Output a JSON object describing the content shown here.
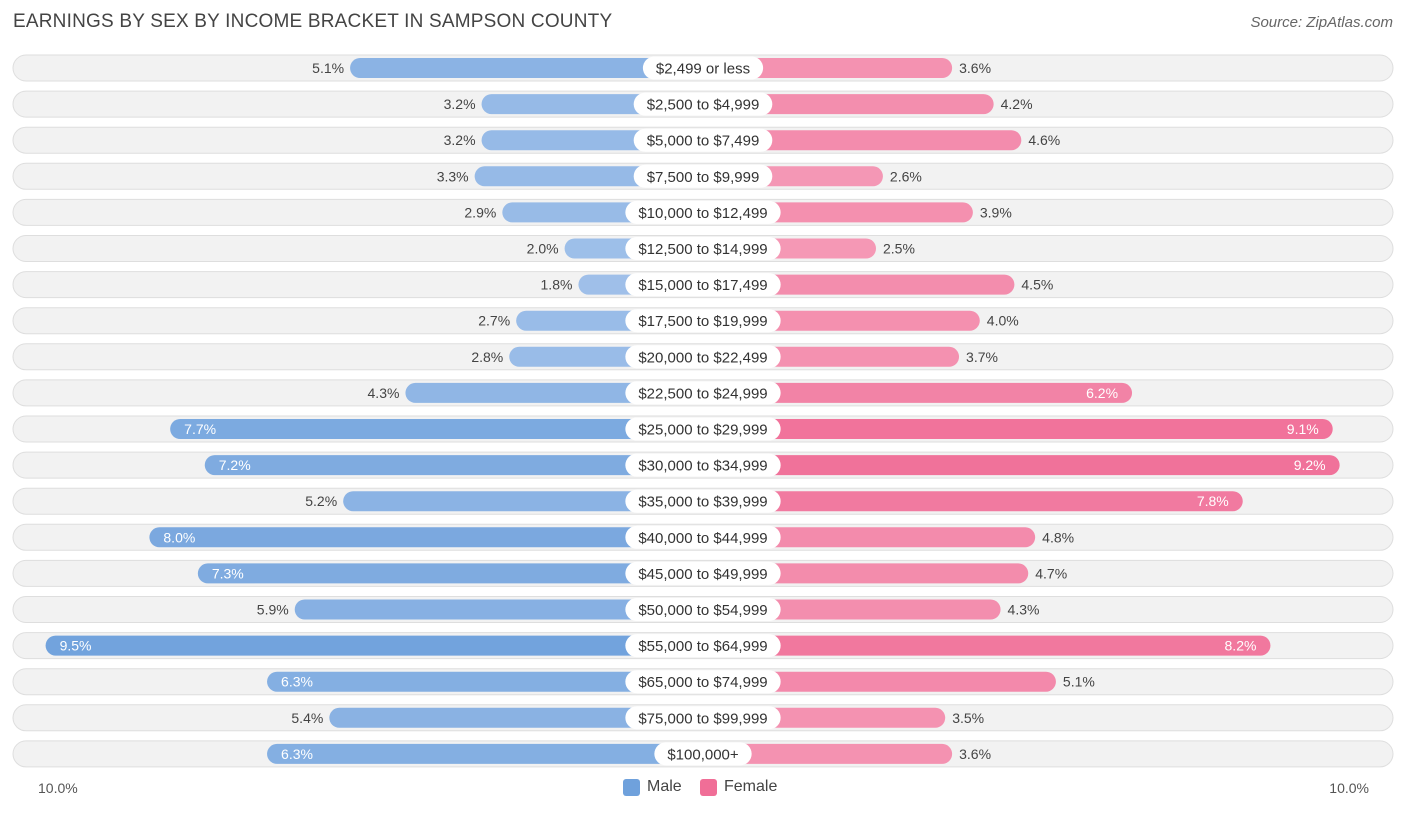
{
  "header": {
    "title": "EARNINGS BY SEX BY INCOME BRACKET IN SAMPSON COUNTY",
    "source": "Source: ZipAtlas.com"
  },
  "colors": {
    "male": "#6fa1dc",
    "male_light": "#a9c6ec",
    "female": "#f06e97",
    "female_light": "#f6a6bf",
    "row_bg": "#f2f2f2",
    "row_border": "#dedede"
  },
  "chart_data": {
    "type": "bar",
    "orientation": "horizontal-diverging",
    "title": "EARNINGS BY SEX BY INCOME BRACKET IN SAMPSON COUNTY",
    "categories": [
      "$2,499 or less",
      "$2,500 to $4,999",
      "$5,000 to $7,499",
      "$7,500 to $9,999",
      "$10,000 to $12,499",
      "$12,500 to $14,999",
      "$15,000 to $17,499",
      "$17,500 to $19,999",
      "$20,000 to $22,499",
      "$22,500 to $24,999",
      "$25,000 to $29,999",
      "$30,000 to $34,999",
      "$35,000 to $39,999",
      "$40,000 to $44,999",
      "$45,000 to $49,999",
      "$50,000 to $54,999",
      "$55,000 to $64,999",
      "$65,000 to $74,999",
      "$75,000 to $99,999",
      "$100,000+"
    ],
    "series": [
      {
        "name": "Male",
        "values": [
          5.1,
          3.2,
          3.2,
          3.3,
          2.9,
          2.0,
          1.8,
          2.7,
          2.8,
          4.3,
          7.7,
          7.2,
          5.2,
          8.0,
          7.3,
          5.9,
          9.5,
          6.3,
          5.4,
          6.3
        ],
        "labels": [
          "5.1%",
          "3.2%",
          "3.2%",
          "3.3%",
          "2.9%",
          "2.0%",
          "1.8%",
          "2.7%",
          "2.8%",
          "4.3%",
          "7.7%",
          "7.2%",
          "5.2%",
          "8.0%",
          "7.3%",
          "5.9%",
          "9.5%",
          "6.3%",
          "5.4%",
          "6.3%"
        ]
      },
      {
        "name": "Female",
        "values": [
          3.6,
          4.2,
          4.6,
          2.6,
          3.9,
          2.5,
          4.5,
          4.0,
          3.7,
          6.2,
          9.1,
          9.2,
          7.8,
          4.8,
          4.7,
          4.3,
          8.2,
          5.1,
          3.5,
          3.6
        ],
        "labels": [
          "3.6%",
          "4.2%",
          "4.6%",
          "2.6%",
          "3.9%",
          "2.5%",
          "4.5%",
          "4.0%",
          "3.7%",
          "6.2%",
          "9.1%",
          "9.2%",
          "7.8%",
          "4.8%",
          "4.7%",
          "4.3%",
          "8.2%",
          "5.1%",
          "3.5%",
          "3.6%"
        ]
      }
    ],
    "xlim": [
      0,
      10.0
    ],
    "axis_left_label": "10.0%",
    "axis_right_label": "10.0%",
    "legend": [
      "Male",
      "Female"
    ],
    "legend_position": "bottom-center"
  }
}
